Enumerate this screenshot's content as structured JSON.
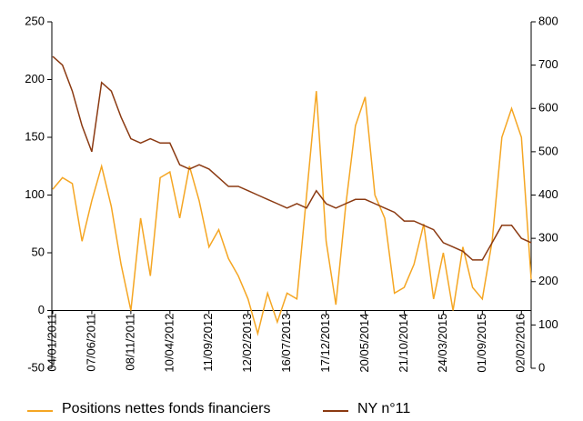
{
  "chart_data": {
    "type": "line",
    "categories": [
      "04/01/2011",
      null,
      null,
      null,
      "07/06/2011",
      null,
      null,
      null,
      "08/11/2011",
      null,
      null,
      null,
      "10/04/2012",
      null,
      null,
      null,
      "11/09/2012",
      null,
      null,
      null,
      "12/02/2013",
      null,
      null,
      null,
      "16/07/2013",
      null,
      null,
      null,
      "17/12/2013",
      null,
      null,
      null,
      "20/05/2014",
      null,
      null,
      null,
      "21/10/2014",
      null,
      null,
      null,
      "24/03/2015",
      null,
      null,
      null,
      "01/09/2015",
      null,
      null,
      null,
      "02/02/2016",
      null
    ],
    "series": [
      {
        "name": "Positions nettes fonds financiers",
        "color": "#f5a623",
        "axis": "y",
        "values": [
          105,
          115,
          110,
          60,
          95,
          125,
          90,
          40,
          0,
          80,
          30,
          115,
          120,
          80,
          125,
          95,
          55,
          70,
          45,
          30,
          10,
          -20,
          15,
          -10,
          15,
          10,
          100,
          190,
          60,
          5,
          90,
          160,
          185,
          100,
          80,
          15,
          20,
          40,
          75,
          10,
          50,
          0,
          55,
          20,
          10,
          60,
          150,
          175,
          150,
          27
        ]
      },
      {
        "name": "NY n°11",
        "color": "#8b3a12",
        "axis": "y2",
        "values": [
          720,
          700,
          640,
          560,
          500,
          660,
          640,
          580,
          530,
          520,
          530,
          520,
          520,
          470,
          460,
          470,
          460,
          440,
          420,
          420,
          410,
          400,
          390,
          380,
          370,
          380,
          370,
          410,
          380,
          370,
          380,
          390,
          390,
          380,
          370,
          360,
          340,
          340,
          330,
          320,
          290,
          280,
          270,
          250,
          250,
          290,
          330,
          330,
          300,
          290
        ]
      }
    ],
    "ylim": [
      -50,
      250
    ],
    "yticks": [
      -50,
      0,
      50,
      100,
      150,
      200,
      250
    ],
    "y2lim": [
      0,
      800
    ],
    "y2ticks": [
      0,
      100,
      200,
      300,
      400,
      500,
      600,
      700,
      800
    ],
    "legend": "bottom"
  }
}
